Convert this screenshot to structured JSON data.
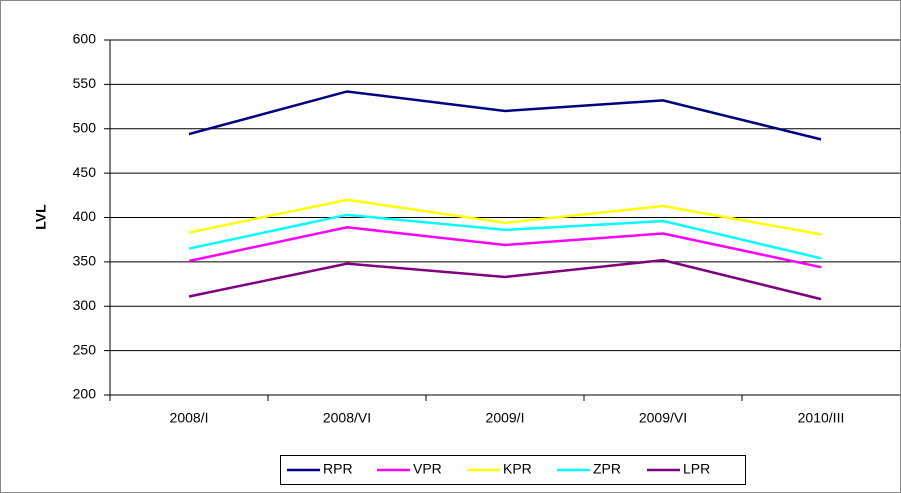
{
  "chart_data": {
    "type": "line",
    "y_label": "LVL",
    "categories": [
      "2008/I",
      "2008/VI",
      "2009/I",
      "2009/VI",
      "2010/III"
    ],
    "series": [
      {
        "name": "RPR",
        "color": "#000080",
        "values": [
          494,
          542,
          520,
          532,
          488
        ]
      },
      {
        "name": "VPR",
        "color": "#ff00ff",
        "values": [
          351,
          389,
          369,
          382,
          344
        ]
      },
      {
        "name": "KPR",
        "color": "#ffff00",
        "values": [
          383,
          420,
          394,
          413,
          381
        ]
      },
      {
        "name": "ZPR",
        "color": "#00ffff",
        "values": [
          365,
          403,
          386,
          396,
          354
        ]
      },
      {
        "name": "LPR",
        "color": "#800080",
        "values": [
          311,
          348,
          333,
          352,
          308
        ]
      }
    ],
    "ylim": [
      200,
      600
    ],
    "yticks": [
      200,
      250,
      300,
      350,
      400,
      450,
      500,
      550,
      600
    ],
    "grid": true
  }
}
